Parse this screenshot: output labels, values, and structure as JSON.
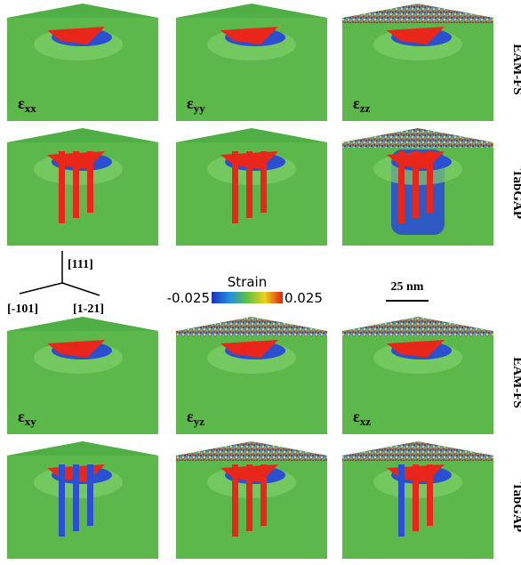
{
  "rows": [
    {
      "method": "EAM-FS",
      "components": [
        {
          "symbol": "ε",
          "subscript": "xx"
        },
        {
          "symbol": "ε",
          "subscript": "yy"
        },
        {
          "symbol": "ε",
          "subscript": "zz"
        }
      ]
    },
    {
      "method": "TabGAP"
    },
    {
      "method": "EAM-FS",
      "components": [
        {
          "symbol": "ε",
          "subscript": "xy"
        },
        {
          "symbol": "ε",
          "subscript": "yz"
        },
        {
          "symbol": "ε",
          "subscript": "xz"
        }
      ]
    },
    {
      "method": "TabGAP"
    }
  ],
  "axes": {
    "up": "[111]",
    "left": "[-101]",
    "right": "[1-21]"
  },
  "colorbar": {
    "title": "Strain",
    "min": -0.025,
    "max": 0.025
  },
  "scale_bar": "25 nm"
}
